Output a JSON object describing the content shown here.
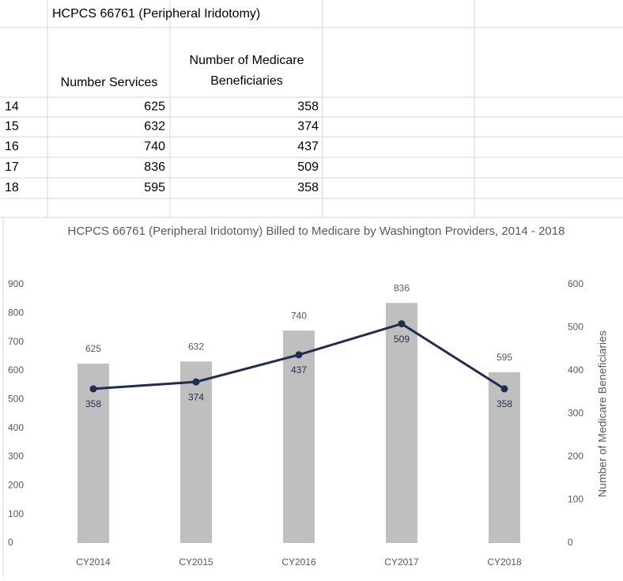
{
  "table": {
    "title": "HCPCS 66761 (Peripheral Iridotomy)",
    "columns": [
      "Number Services",
      "Number of Medicare Beneficiaries"
    ],
    "rows": [
      [
        "14",
        "625",
        "358"
      ],
      [
        "15",
        "632",
        "374"
      ],
      [
        "16",
        "740",
        "437"
      ],
      [
        "17",
        "836",
        "509"
      ],
      [
        "18",
        "595",
        "358"
      ]
    ]
  },
  "chart_data": {
    "type": "bar",
    "title": "HCPCS 66761 (Peripheral Iridotomy) Billed to Medicare by Washington Providers, 2014 - 2018",
    "categories": [
      "CY2014",
      "CY2015",
      "CY2016",
      "CY2017",
      "CY2018"
    ],
    "series": [
      {
        "type": "bar",
        "color": "#bfbfbf",
        "values": [
          625,
          632,
          740,
          836,
          595
        ]
      },
      {
        "type": "line",
        "axis": "y2",
        "color": "#1f2d4e",
        "values": [
          358,
          374,
          437,
          509,
          358
        ]
      }
    ],
    "y2label": "Number of Medicare Beneficiaries",
    "ylim": [
      0,
      900
    ],
    "yticks": [
      0,
      100,
      200,
      300,
      400,
      500,
      600,
      700,
      800,
      900
    ],
    "y2lim": [
      0,
      600
    ],
    "y2ticks": [
      0,
      100,
      200,
      300,
      400,
      500,
      600
    ],
    "grid": false
  }
}
